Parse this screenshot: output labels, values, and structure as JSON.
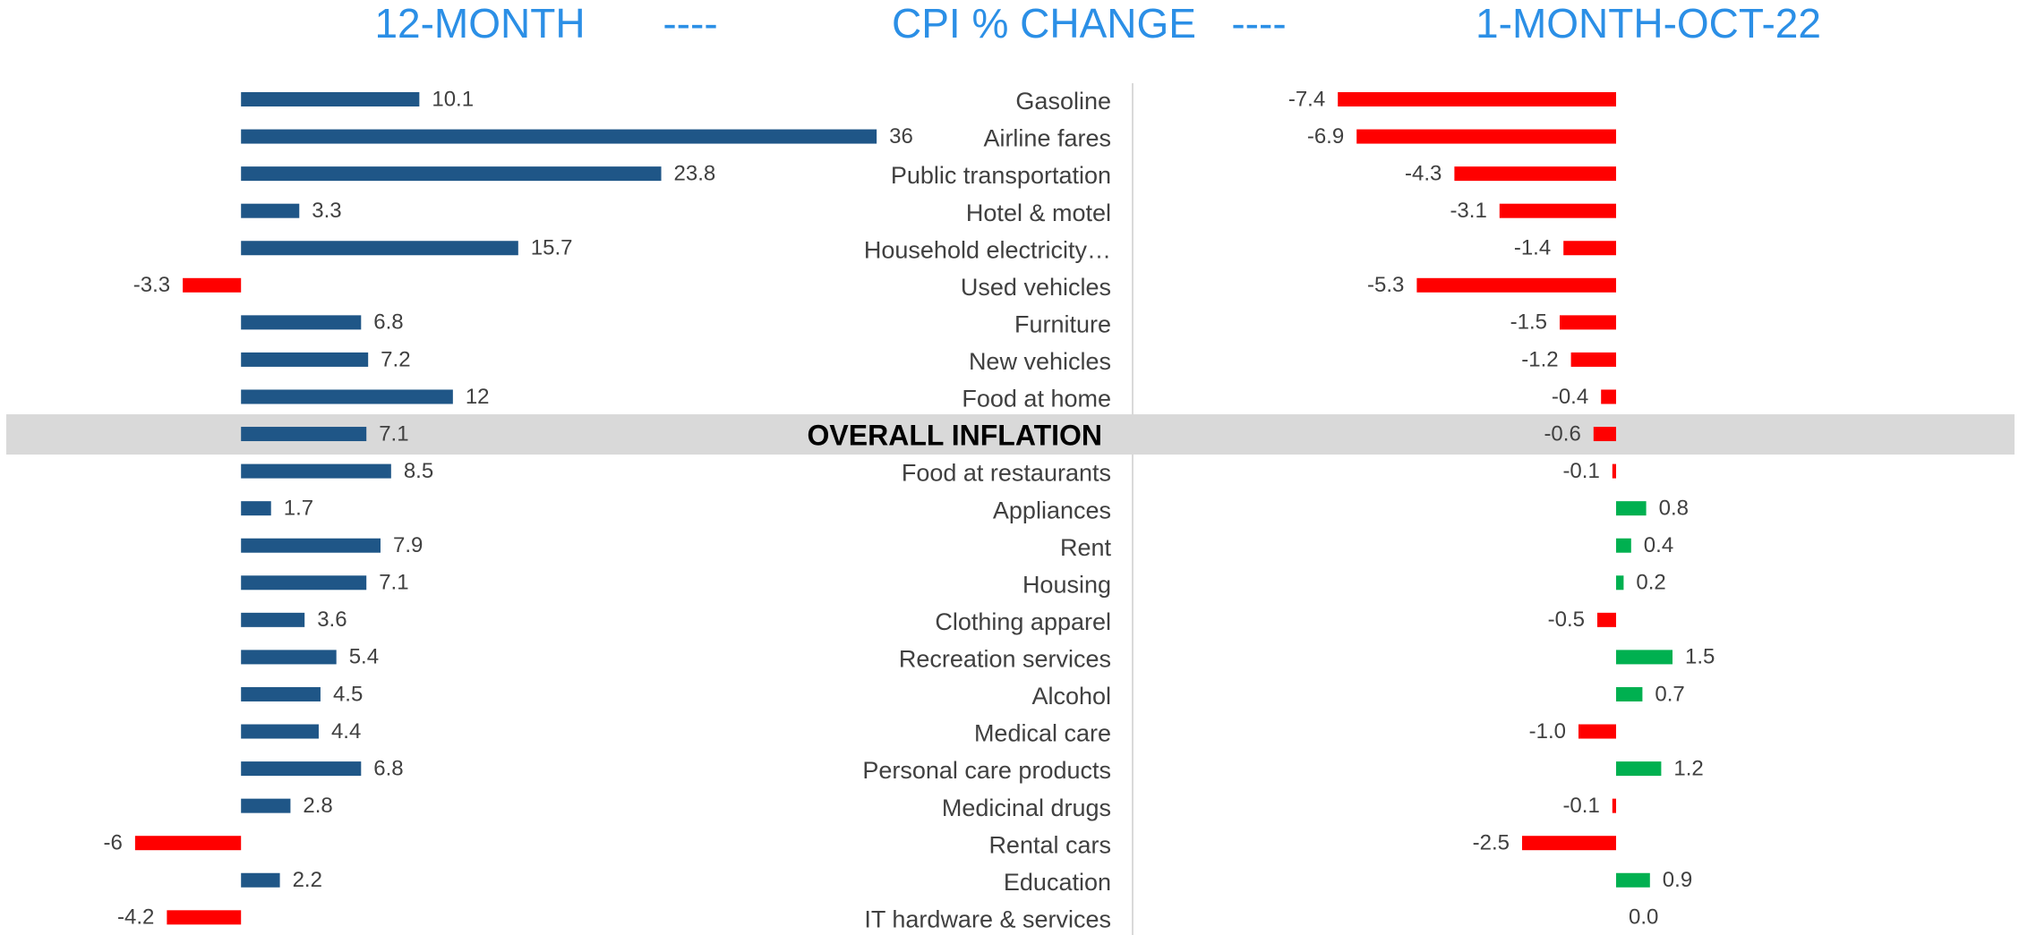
{
  "chart_data": {
    "type": "bar",
    "orientation": "horizontal",
    "title_parts": [
      "12-MONTH",
      "----",
      "CPI % CHANGE",
      "----",
      "1-MONTH-OCT-22"
    ],
    "categories": [
      "Gasoline",
      "Airline fares",
      "Public transportation",
      "Hotel & motel",
      "Household electricity…",
      "Used vehicles",
      "Furniture",
      "New vehicles",
      "Food at home",
      "OVERALL INFLATION",
      "Food at restaurants",
      "Appliances",
      "Rent",
      "Housing",
      "Clothing apparel",
      "Recreation services",
      "Alcohol",
      "Medical care",
      "Personal care products",
      "Medicinal drugs",
      "Rental cars",
      "Education",
      "IT hardware & services"
    ],
    "highlight": 9,
    "series": [
      {
        "name": "12-MONTH",
        "color": "#1f5687",
        "negative_color": "#ff0000",
        "xlim": [
          -10,
          40
        ],
        "values": [
          10.1,
          36,
          23.8,
          3.3,
          15.7,
          -3.3,
          6.8,
          7.2,
          12,
          7.1,
          8.5,
          1.7,
          7.9,
          7.1,
          3.6,
          5.4,
          4.5,
          4.4,
          6.8,
          2.8,
          -6,
          2.2,
          -4.2
        ]
      },
      {
        "name": "1-MONTH-OCT-22",
        "color": "#00b050",
        "negative_color": "#ff0000",
        "xlim": [
          -10,
          6
        ],
        "values": [
          -7.4,
          -6.9,
          -4.3,
          -3.1,
          -1.4,
          -5.3,
          -1.5,
          -1.2,
          -0.4,
          -0.6,
          -0.1,
          0.8,
          0.4,
          0.2,
          -0.5,
          1.5,
          0.7,
          -1.0,
          1.2,
          -0.1,
          -2.5,
          0.9,
          0.0
        ],
        "value_labels": [
          "-7.4",
          "-6.9",
          "-4.3",
          "-3.1",
          "-1.4",
          "-5.3",
          "-1.5",
          "-1.2",
          "-0.4",
          "-0.6",
          "-0.1",
          "0.8",
          "0.4",
          "0.2",
          "-0.5",
          "1.5",
          "0.7",
          "-1.0",
          "1.2",
          "-0.1",
          "-2.5",
          "0.9",
          "0.0"
        ]
      }
    ]
  }
}
